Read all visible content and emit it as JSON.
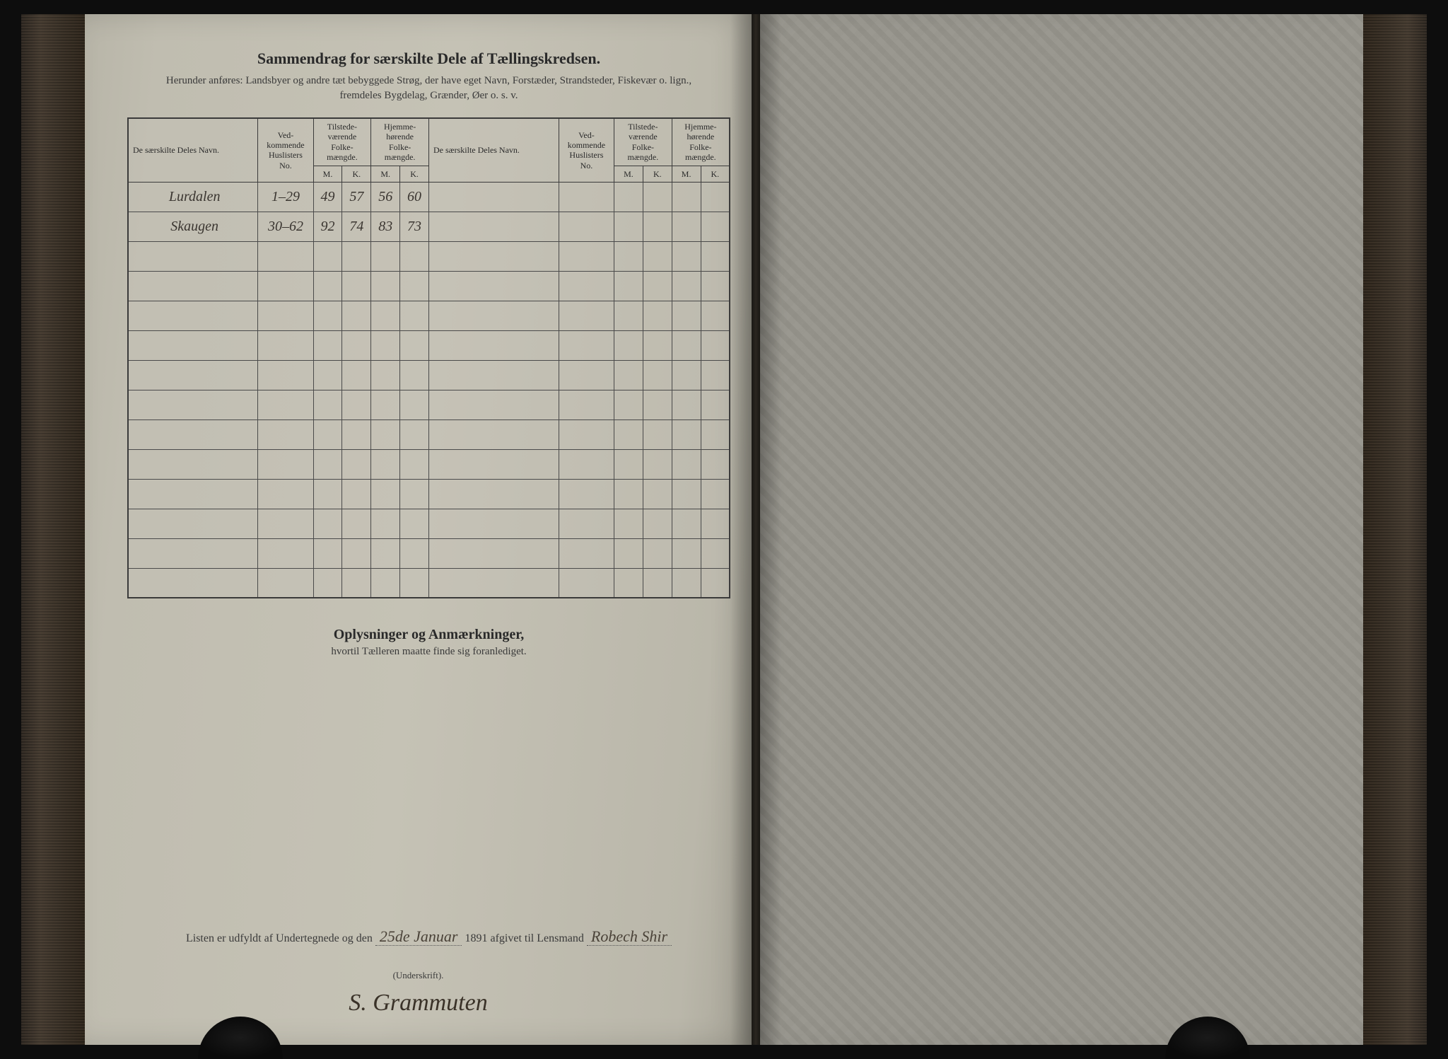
{
  "header": {
    "title": "Sammendrag for særskilte Dele af Tællingskredsen.",
    "subtitle_line1": "Herunder anføres: Landsbyer og andre tæt bebyggede Strøg, der have eget Navn, Forstæder, Strandsteder, Fiskevær o. lign.,",
    "subtitle_line2": "fremdeles Bygdelag, Grænder, Øer o. s. v."
  },
  "table": {
    "columns": {
      "name": "De særskilte Deles Navn.",
      "huslister": "Ved-kommende Huslisters No.",
      "tilstede": "Tilstede-værende Folke-mængde.",
      "hjemme": "Hjemme-hørende Folke-mængde.",
      "m": "M.",
      "k": "K."
    },
    "rows": [
      {
        "name": "Lurdalen",
        "no": "1–29",
        "tm": "49",
        "tk": "57",
        "hm": "56",
        "hk": "60"
      },
      {
        "name": "Skaugen",
        "no": "30–62",
        "tm": "92",
        "tk": "74",
        "hm": "83",
        "hk": "73"
      }
    ],
    "empty_rows": 12
  },
  "notes": {
    "title": "Oplysninger og Anmærkninger,",
    "subtitle": "hvortil Tælleren maatte finde sig foranlediget."
  },
  "footer": {
    "prefix": "Listen er udfyldt af Undertegnede og den",
    "date": "25de Januar",
    "year": "1891",
    "mid": "afgivet til Lensmand",
    "lensmand": "Robech Shir",
    "signature_label": "(Underskrift).",
    "signature": "S. Grammuten"
  },
  "colors": {
    "page_bg": "#c0bdb0",
    "ink": "#2a2a2a",
    "handwriting": "#4a4238",
    "border": "#3a3a3a"
  }
}
